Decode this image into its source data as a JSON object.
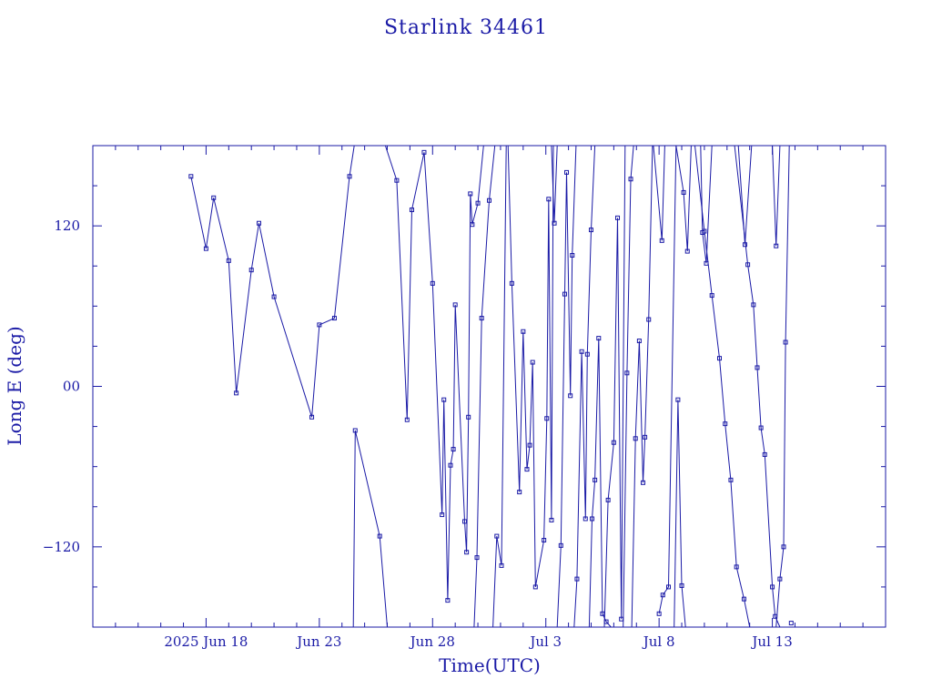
{
  "chart_data": {
    "type": "line",
    "title": "Starlink 34461",
    "xlabel": "Time(UTC)",
    "ylabel": "Long E (deg)",
    "x_unit": "date (2025)",
    "xlim": [
      "2025-06-13",
      "2025-07-18"
    ],
    "ylim": [
      -180,
      180
    ],
    "x_ticks": [
      {
        "date": "2025-06-18",
        "label": "2025 Jun 18"
      },
      {
        "date": "2025-06-23",
        "label": "Jun 23"
      },
      {
        "date": "2025-06-28",
        "label": "Jun 28"
      },
      {
        "date": "2025-07-03",
        "label": "Jul  3"
      },
      {
        "date": "2025-07-08",
        "label": "Jul  8"
      },
      {
        "date": "2025-07-13",
        "label": "Jul 13"
      }
    ],
    "y_ticks": [
      120,
      0,
      -120
    ],
    "y_tick_labels": [
      "120",
      "00",
      "−120"
    ],
    "grid": false,
    "colors": {
      "line": "#1a1aa6",
      "axes": "#1a1aa6"
    },
    "series": [
      {
        "points": [
          [
            "2025-06-17T08:00",
            157
          ],
          [
            "2025-06-18T00:00",
            103
          ],
          [
            "2025-06-18T08:00",
            141
          ],
          [
            "2025-06-19T00:00",
            94
          ],
          [
            "2025-06-19T08:00",
            -5
          ],
          [
            "2025-06-20T00:00",
            87
          ],
          [
            "2025-06-20T08:00",
            122
          ],
          [
            "2025-06-21T00:00",
            67
          ],
          [
            "2025-06-22T16:00",
            -23
          ],
          [
            "2025-06-23T00:00",
            46
          ],
          [
            "2025-06-23T16:00",
            51
          ],
          [
            "2025-06-24T08:00",
            157
          ],
          [
            "2025-06-24T13:00",
            180
          ]
        ]
      },
      {
        "points": [
          [
            "2025-06-24T12:00",
            -180
          ],
          [
            "2025-06-24T14:00",
            -33
          ],
          [
            "2025-06-25T16:00",
            -112
          ],
          [
            "2025-06-26T00:00",
            -180
          ]
        ]
      },
      {
        "points": [
          [
            "2025-06-25T22:00",
            180
          ],
          [
            "2025-06-26T10:00",
            154
          ],
          [
            "2025-06-26T21:00",
            -25
          ],
          [
            "2025-06-27T02:00",
            132
          ],
          [
            "2025-06-27T15:00",
            175
          ],
          [
            "2025-06-28T00:00",
            77
          ],
          [
            "2025-06-28T10:00",
            -96
          ],
          [
            "2025-06-28T12:00",
            -10
          ],
          [
            "2025-06-28T16:00",
            -160
          ],
          [
            "2025-06-28T19:00",
            -59
          ],
          [
            "2025-06-28T22:00",
            -47
          ],
          [
            "2025-06-29T00:00",
            61
          ],
          [
            "2025-06-29T10:00",
            -101
          ],
          [
            "2025-06-29T12:00",
            -124
          ],
          [
            "2025-06-29T14:00",
            -23
          ],
          [
            "2025-06-29T16:00",
            144
          ],
          [
            "2025-06-29T18:00",
            121
          ],
          [
            "2025-06-30T00:00",
            137
          ],
          [
            "2025-06-30T06:00",
            180
          ]
        ]
      },
      {
        "points": [
          [
            "2025-06-29T20:00",
            -180
          ],
          [
            "2025-06-29T23:00",
            -128
          ],
          [
            "2025-06-30T04:00",
            51
          ],
          [
            "2025-06-30T12:00",
            139
          ],
          [
            "2025-06-30T18:00",
            180
          ]
        ]
      },
      {
        "points": [
          [
            "2025-06-30T16:00",
            -180
          ],
          [
            "2025-06-30T20:00",
            -112
          ],
          [
            "2025-07-01T01:00",
            -134
          ],
          [
            "2025-07-01T06:00",
            180
          ]
        ]
      },
      {
        "points": [
          [
            "2025-07-01T08:00",
            180
          ],
          [
            "2025-07-01T12:00",
            77
          ],
          [
            "2025-07-01T20:00",
            -79
          ],
          [
            "2025-07-02T00:00",
            41
          ],
          [
            "2025-07-02T04:00",
            -62
          ],
          [
            "2025-07-02T07:00",
            -44
          ],
          [
            "2025-07-02T10:00",
            18
          ],
          [
            "2025-07-02T13:00",
            -150
          ],
          [
            "2025-07-02T22:00",
            -115
          ],
          [
            "2025-07-03T01:00",
            -24
          ],
          [
            "2025-07-03T03:00",
            140
          ],
          [
            "2025-07-03T06:00",
            -100
          ],
          [
            "2025-07-03T08:00",
            180
          ]
        ]
      },
      {
        "points": [
          [
            "2025-07-03T06:00",
            180
          ],
          [
            "2025-07-03T09:00",
            122
          ],
          [
            "2025-07-03T12:00",
            180
          ]
        ]
      },
      {
        "points": [
          [
            "2025-07-03T12:00",
            -180
          ],
          [
            "2025-07-03T16:00",
            -119
          ],
          [
            "2025-07-03T20:00",
            69
          ],
          [
            "2025-07-03T22:00",
            160
          ],
          [
            "2025-07-04T02:00",
            -7
          ],
          [
            "2025-07-04T04:00",
            98
          ],
          [
            "2025-07-04T08:00",
            180
          ]
        ]
      },
      {
        "points": [
          [
            "2025-07-04T06:00",
            -180
          ],
          [
            "2025-07-04T09:00",
            -144
          ],
          [
            "2025-07-04T14:00",
            26
          ],
          [
            "2025-07-04T18:00",
            -99
          ],
          [
            "2025-07-04T20:00",
            24
          ],
          [
            "2025-07-05T00:00",
            117
          ],
          [
            "2025-07-05T04:00",
            180
          ]
        ]
      },
      {
        "points": [
          [
            "2025-07-04T22:00",
            -180
          ],
          [
            "2025-07-05T01:00",
            -99
          ],
          [
            "2025-07-05T04:00",
            -70
          ],
          [
            "2025-07-05T08:00",
            36
          ],
          [
            "2025-07-05T12:00",
            -170
          ],
          [
            "2025-07-05T16:00",
            -176
          ],
          [
            "2025-07-05T21:00",
            -180
          ]
        ]
      },
      {
        "points": [
          [
            "2025-07-05T14:00",
            -180
          ],
          [
            "2025-07-05T18:00",
            -85
          ],
          [
            "2025-07-06T00:00",
            -42
          ],
          [
            "2025-07-06T04:00",
            126
          ],
          [
            "2025-07-06T08:00",
            -174
          ],
          [
            "2025-07-06T12:00",
            180
          ]
        ]
      },
      {
        "points": [
          [
            "2025-07-06T10:00",
            -180
          ],
          [
            "2025-07-06T14:00",
            10
          ],
          [
            "2025-07-06T18:00",
            155
          ],
          [
            "2025-07-06T21:00",
            180
          ]
        ]
      },
      {
        "points": [
          [
            "2025-07-06T19:00",
            -180
          ],
          [
            "2025-07-06T23:00",
            -39
          ],
          [
            "2025-07-07T03:00",
            34
          ],
          [
            "2025-07-07T07:00",
            -72
          ],
          [
            "2025-07-07T09:00",
            -38
          ],
          [
            "2025-07-07T13:00",
            50
          ],
          [
            "2025-07-07T17:00",
            180
          ]
        ]
      },
      {
        "points": [
          [
            "2025-07-08T00:00",
            -170
          ],
          [
            "2025-07-08T04:00",
            -156
          ],
          [
            "2025-07-08T10:00",
            -150
          ],
          [
            "2025-07-08T18:00",
            180
          ]
        ]
      },
      {
        "points": [
          [
            "2025-07-08T18:00",
            180
          ],
          [
            "2025-07-09T02:00",
            145
          ],
          [
            "2025-07-09T06:00",
            101
          ],
          [
            "2025-07-09T10:00",
            180
          ]
        ]
      },
      {
        "points": [
          [
            "2025-07-09T20:00",
            180
          ],
          [
            "2025-07-09T22:00",
            115
          ],
          [
            "2025-07-10T02:00",
            92
          ],
          [
            "2025-07-10T08:00",
            180
          ]
        ]
      },
      {
        "points": [
          [
            "2025-07-07T18:00",
            180
          ],
          [
            "2025-07-08T03:00",
            109
          ],
          [
            "2025-07-08T06:00",
            180
          ]
        ]
      },
      {
        "points": [
          [
            "2025-07-08T16:00",
            -180
          ],
          [
            "2025-07-08T20:00",
            -10
          ],
          [
            "2025-07-09T00:00",
            -149
          ],
          [
            "2025-07-09T04:00",
            -180
          ]
        ]
      },
      {
        "points": [
          [
            "2025-07-09T14:00",
            180
          ],
          [
            "2025-07-10T00:00",
            116
          ],
          [
            "2025-07-10T08:00",
            68
          ],
          [
            "2025-07-10T16:00",
            21
          ],
          [
            "2025-07-10T22:00",
            -28
          ],
          [
            "2025-07-11T04:00",
            -70
          ],
          [
            "2025-07-11T10:00",
            -135
          ],
          [
            "2025-07-11T18:00",
            -159
          ],
          [
            "2025-07-12T00:00",
            -180
          ]
        ]
      },
      {
        "points": [
          [
            "2025-07-11T12:00",
            180
          ],
          [
            "2025-07-11T19:00",
            106
          ],
          [
            "2025-07-12T02:00",
            180
          ]
        ]
      },
      {
        "points": [
          [
            "2025-07-11T08:00",
            180
          ],
          [
            "2025-07-11T22:00",
            91
          ],
          [
            "2025-07-12T04:00",
            61
          ],
          [
            "2025-07-12T08:00",
            14
          ],
          [
            "2025-07-12T12:00",
            -31
          ],
          [
            "2025-07-12T16:00",
            -51
          ],
          [
            "2025-07-13T00:00",
            -150
          ],
          [
            "2025-07-13T03:00",
            -172
          ],
          [
            "2025-07-13T08:00",
            -180
          ]
        ]
      },
      {
        "points": [
          [
            "2025-07-13T00:00",
            180
          ],
          [
            "2025-07-13T04:00",
            105
          ],
          [
            "2025-07-13T08:00",
            180
          ]
        ]
      },
      {
        "points": [
          [
            "2025-07-13T04:00",
            -180
          ],
          [
            "2025-07-13T08:00",
            -144
          ],
          [
            "2025-07-13T12:00",
            -120
          ],
          [
            "2025-07-13T14:00",
            33
          ],
          [
            "2025-07-13T18:00",
            180
          ]
        ]
      },
      {
        "points": [
          [
            "2025-07-13T20:00",
            -177
          ]
        ]
      }
    ]
  }
}
